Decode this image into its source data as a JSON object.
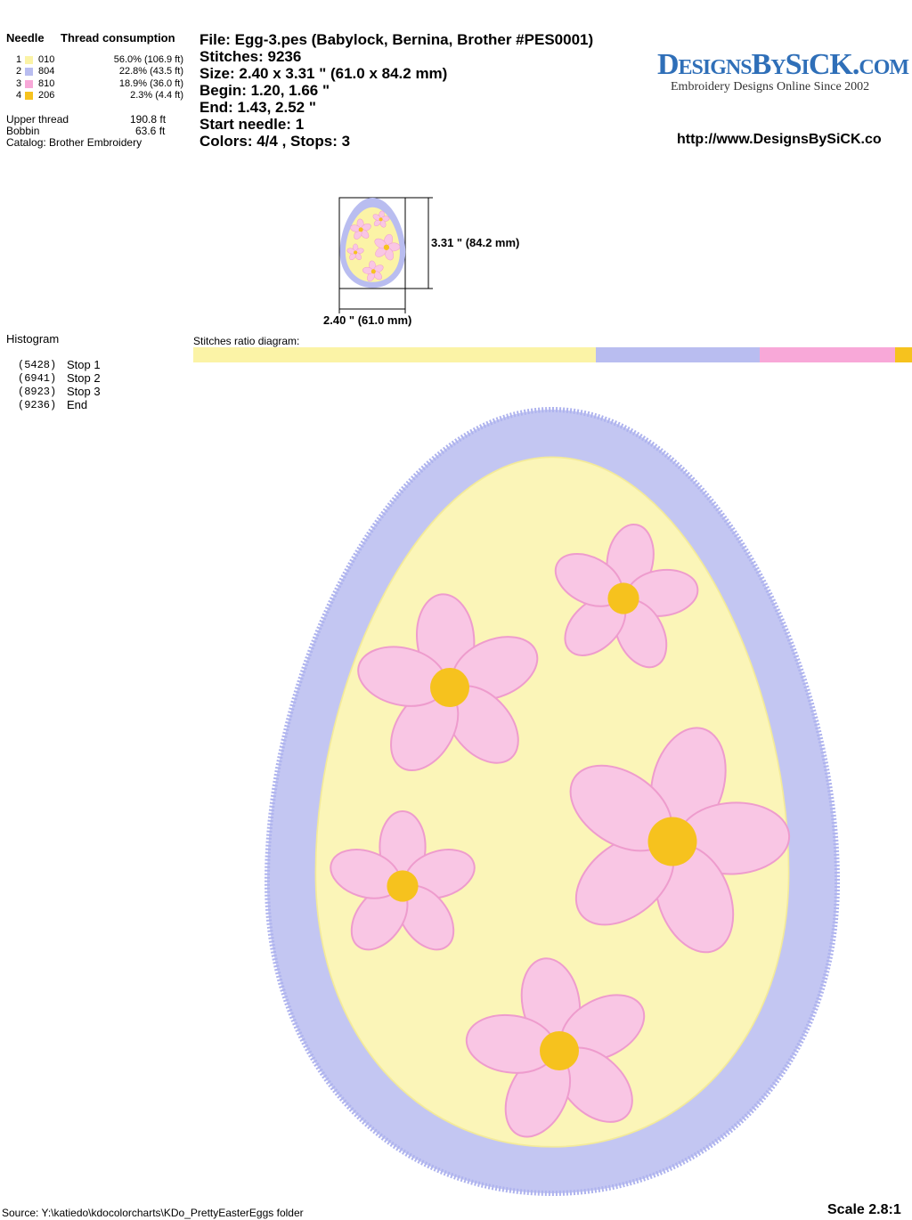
{
  "threads": {
    "headers": [
      "Needle",
      "Thread consumption"
    ],
    "rows": [
      {
        "needle": "1",
        "code": "010",
        "usage": "56.0% (106.9 ft)",
        "color": "#fbf3a6"
      },
      {
        "needle": "2",
        "code": "804",
        "usage": "22.8% (43.5 ft)",
        "color": "#b9bdf0"
      },
      {
        "needle": "3",
        "code": "810",
        "usage": "18.9% (36.0 ft)",
        "color": "#f8a8d8"
      },
      {
        "needle": "4",
        "code": "206",
        "usage": "2.3% (4.4 ft)",
        "color": "#f6c21e"
      }
    ],
    "totals": [
      {
        "label": "Upper thread",
        "value": "190.8 ft"
      },
      {
        "label": "Bobbin",
        "value": "63.6 ft"
      }
    ],
    "catalog": "Catalog: Brother Embroidery"
  },
  "file_info": [
    "File: Egg-3.pes  (Babylock, Bernina, Brother #PES0001)",
    "Stitches: 9236",
    "Size: 2.40 x 3.31 \" (61.0 x 84.2 mm)",
    "Begin: 1.20, 1.66 \"",
    "End: 1.43, 2.52 \"",
    "Start needle: 1",
    "Colors: 4/4 , Stops: 3"
  ],
  "logo": {
    "title": "DesignsBySiCK.com",
    "tagline": "Embroidery Designs Online Since 2002"
  },
  "url": "http://www.DesignsBySiCK.co",
  "preview": {
    "height_label": "3.31 \" (84.2 mm)",
    "width_label": "2.40 \" (61.0 mm)"
  },
  "histogram": {
    "title": "Histogram",
    "stops": [
      {
        "count": "(5428)",
        "label": "Stop 1"
      },
      {
        "count": "(6941)",
        "label": "Stop 2"
      },
      {
        "count": "(8923)",
        "label": "Stop 3"
      },
      {
        "count": "(9236)",
        "label": "End"
      }
    ]
  },
  "ratio": {
    "title": "Stitches ratio diagram:",
    "segments": [
      56.0,
      22.8,
      18.9,
      2.3
    ]
  },
  "footer": {
    "source": "Source: Y:\\katiedo\\kdocolorcharts\\KDo_PrettyEasterEggs folder",
    "scale": "Scale 2.8:1"
  }
}
